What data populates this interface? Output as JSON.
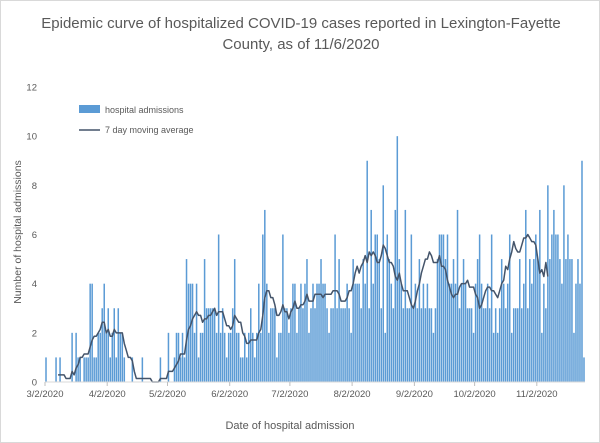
{
  "chart_data": {
    "type": "bar",
    "title": "Epidemic curve of hospitalized COVID-19 cases reported in Lexington-Fayette County, as of 11/6/2020",
    "title_lines": [
      "Epidemic curve of hospitalized COVID-19 cases reported in Lexington-Fayette",
      "County, as of 11/6/2020"
    ],
    "xlabel": "Date of hospital admission",
    "ylabel": "Number of hospital admissions",
    "ylim": [
      0,
      12
    ],
    "yticks": [
      0,
      2,
      4,
      6,
      8,
      10,
      12
    ],
    "x_start": "3/2/2020",
    "x_end": "11/6/2020",
    "xticks": [
      {
        "label": "3/2/2020",
        "day": 0
      },
      {
        "label": "4/2/2020",
        "day": 31
      },
      {
        "label": "5/2/2020",
        "day": 61
      },
      {
        "label": "6/2/2020",
        "day": 92
      },
      {
        "label": "7/2/2020",
        "day": 122
      },
      {
        "label": "8/2/2020",
        "day": 153
      },
      {
        "label": "9/2/2020",
        "day": 184
      },
      {
        "label": "10/2/2020",
        "day": 214
      },
      {
        "label": "11/2/2020",
        "day": 245
      }
    ],
    "grid": false,
    "legend_position": "top-left",
    "series": [
      {
        "name": "hospital admissions",
        "kind": "bar",
        "color": "#5b9bd5",
        "values": [
          1,
          0,
          0,
          0,
          0,
          1,
          0,
          1,
          0,
          0,
          0,
          0,
          0,
          2,
          0,
          2,
          1,
          1,
          0,
          1,
          1,
          1,
          4,
          4,
          1,
          1,
          2,
          2,
          3,
          4,
          2,
          3,
          1,
          2,
          3,
          1,
          3,
          2,
          2,
          1,
          0,
          0,
          0,
          1,
          0,
          0,
          0,
          0,
          1,
          0,
          0,
          0,
          0,
          0,
          0,
          0,
          0,
          1,
          0,
          0,
          0,
          2,
          0,
          0,
          1,
          2,
          2,
          1,
          2,
          1,
          5,
          4,
          4,
          4,
          2,
          4,
          1,
          2,
          2,
          5,
          3,
          3,
          3,
          3,
          3,
          2,
          6,
          2,
          3,
          2,
          1,
          2,
          2,
          3,
          5,
          2,
          2,
          1,
          1,
          2,
          1,
          2,
          3,
          2,
          1,
          2,
          4,
          2,
          6,
          7,
          4,
          2,
          3,
          3,
          3,
          1,
          2,
          2,
          6,
          3,
          3,
          2,
          3,
          4,
          4,
          2,
          3,
          4,
          3,
          4,
          5,
          2,
          3,
          4,
          3,
          4,
          4,
          5,
          4,
          4,
          3,
          2,
          3,
          3,
          6,
          3,
          5,
          3,
          3,
          3,
          4,
          3,
          2,
          5,
          4,
          4,
          4,
          3,
          5,
          4,
          9,
          3,
          7,
          4,
          6,
          6,
          5,
          3,
          8,
          2,
          6,
          5,
          4,
          3,
          7,
          10,
          5,
          4,
          3,
          7,
          3,
          3,
          6,
          3,
          4,
          3,
          5,
          3,
          4,
          3,
          4,
          3,
          3,
          2,
          3,
          5,
          6,
          6,
          6,
          5,
          6,
          4,
          4,
          5,
          4,
          7,
          3,
          4,
          5,
          4,
          3,
          3,
          3,
          2,
          4,
          5,
          6,
          4,
          3,
          3,
          4,
          3,
          6,
          2,
          3,
          2,
          3,
          5,
          4,
          3,
          4,
          6,
          2,
          3,
          3,
          3,
          5,
          3,
          4,
          7,
          3,
          5,
          4,
          5,
          6,
          5,
          7,
          2,
          4,
          3,
          8,
          5,
          6,
          7,
          6,
          6,
          5,
          4,
          8,
          5,
          6,
          5,
          5,
          2,
          4,
          5,
          4,
          9,
          1
        ]
      },
      {
        "name": "7 day moving average",
        "kind": "line",
        "color": "#44546a",
        "values": [
          null,
          null,
          null,
          null,
          null,
          null,
          0.29,
          0.29,
          0.29,
          0.29,
          0.14,
          0.14,
          0.14,
          0.43,
          0.29,
          0.57,
          0.71,
          1.0,
          1.0,
          1.14,
          1.14,
          1.14,
          1.43,
          1.71,
          1.86,
          1.86,
          2.0,
          2.14,
          2.43,
          2.43,
          2.0,
          2.14,
          1.86,
          1.86,
          2.14,
          2.0,
          2.0,
          2.0,
          2.0,
          1.57,
          1.29,
          1.0,
          1.0,
          0.86,
          0.43,
          0.14,
          0.14,
          0.14,
          0.14,
          0.14,
          0.14,
          0.14,
          0.14,
          0.0,
          0.0,
          0.0,
          0.0,
          0.14,
          0.14,
          0.14,
          0.14,
          0.43,
          0.43,
          0.43,
          0.57,
          0.71,
          0.86,
          1.14,
          1.14,
          1.14,
          1.71,
          2.14,
          2.29,
          2.57,
          2.71,
          2.86,
          2.71,
          2.71,
          2.43,
          2.57,
          2.57,
          2.71,
          2.71,
          2.86,
          3.0,
          2.71,
          2.86,
          2.86,
          2.86,
          2.57,
          2.29,
          2.29,
          2.14,
          2.29,
          2.71,
          2.57,
          2.43,
          2.43,
          2.0,
          1.86,
          1.57,
          1.57,
          1.71,
          1.71,
          1.71,
          1.71,
          2.0,
          2.14,
          2.71,
          3.43,
          3.71,
          3.71,
          3.43,
          3.43,
          3.14,
          2.71,
          2.71,
          2.86,
          3.14,
          2.86,
          2.86,
          2.57,
          2.86,
          3.0,
          3.29,
          3.0,
          3.0,
          3.14,
          3.14,
          3.29,
          3.57,
          3.29,
          3.29,
          3.29,
          3.57,
          3.57,
          3.57,
          3.57,
          3.43,
          3.57,
          3.57,
          3.57,
          3.57,
          3.71,
          3.71,
          3.71,
          3.57,
          3.29,
          3.29,
          3.29,
          3.43,
          3.71,
          3.71,
          4.0,
          4.43,
          4.71,
          4.43,
          4.71,
          4.86,
          5.14,
          4.86,
          5.29,
          5.14,
          5.29,
          5.14,
          4.86,
          4.86,
          5.14,
          5.57,
          5.43,
          5.14,
          4.86,
          4.86,
          4.71,
          4.29,
          4.14,
          4.43,
          4.0,
          3.71,
          3.71,
          3.71,
          3.43,
          3.14,
          3.0,
          3.29,
          3.71,
          4.0,
          4.43,
          4.71,
          5.0,
          5.0,
          5.29,
          5.14,
          4.86,
          4.86,
          4.86,
          5.14,
          4.71,
          4.71,
          4.57,
          4.14,
          3.86,
          3.57,
          3.43,
          3.57,
          3.57,
          3.86,
          4.0,
          4.0,
          4.0,
          4.14,
          3.86,
          3.86,
          3.86,
          3.57,
          3.43,
          3.0,
          3.14,
          3.43,
          3.71,
          3.86,
          3.86,
          3.71,
          3.71,
          3.57,
          3.43,
          3.71,
          4.0,
          4.14,
          4.71,
          4.57,
          5.0,
          5.29,
          5.71,
          5.43,
          5.29,
          5.29,
          5.57,
          5.86,
          5.86,
          6.0,
          5.86,
          5.71,
          5.71,
          5.57,
          5.0,
          4.43,
          4.57,
          4.29,
          4.86,
          4.29
        ]
      }
    ]
  }
}
